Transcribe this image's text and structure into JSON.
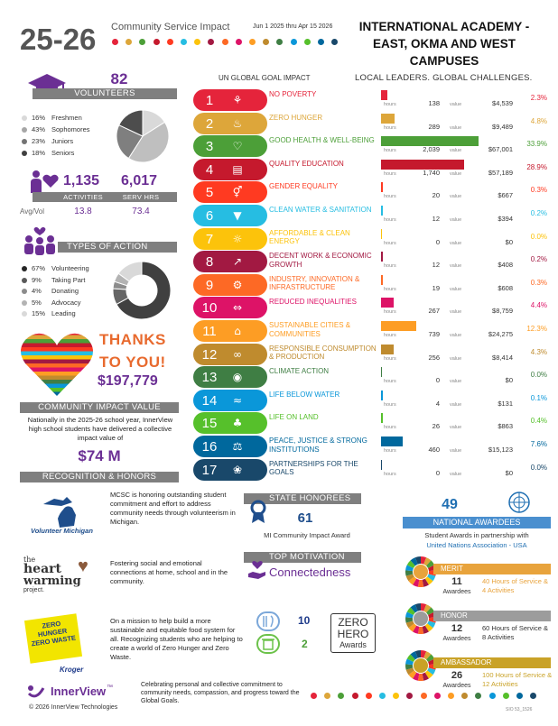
{
  "header": {
    "year": "25-26",
    "subtitle": "Community Service Impact",
    "date_range": "Jun 1 2025 thru Apr 15 2026",
    "school": "INTERNATIONAL ACADEMY - EAST, OKMA AND WEST CAMPUSES",
    "tagline": "LOCAL LEADERS.  GLOBAL CHALLENGES."
  },
  "header_dots": [
    "#e5243b",
    "#dda63a",
    "#4c9f38",
    "#c5192d",
    "#ff3a21",
    "#26bde2",
    "#fcc30b",
    "#a21942",
    "#fd6925",
    "#dd1367",
    "#fd9d24",
    "#bf8b2e",
    "#3f7e44",
    "#0a97d9",
    "#56c02b",
    "#00689d",
    "#19486a"
  ],
  "volunteers": {
    "count": "82",
    "label": "VOLUNTEERS",
    "legend": [
      {
        "pct": "16%",
        "label": "Freshmen",
        "color": "#d9d9d9"
      },
      {
        "pct": "43%",
        "label": "Sophomores",
        "color": "#a6a6a6"
      },
      {
        "pct": "23%",
        "label": "Juniors",
        "color": "#737373"
      },
      {
        "pct": "18%",
        "label": "Seniors",
        "color": "#404040"
      }
    ],
    "pie_values": [
      16,
      43,
      23,
      18
    ],
    "pie_colors": [
      "#d9d9d9",
      "#bfbfbf",
      "#7f7f7f",
      "#4d4d4d"
    ]
  },
  "activity": {
    "activities": "1,135",
    "serv_hrs": "6,017",
    "activities_label": "ACTIVITIES",
    "serv_hrs_label": "SERV HRS",
    "avg_label": "Avg/Vol",
    "avg_activities": "13.8",
    "avg_hours": "73.4"
  },
  "types": {
    "label": "TYPES OF ACTION",
    "legend": [
      {
        "pct": "67%",
        "label": "Volunteering",
        "color": "#262626"
      },
      {
        "pct": "9%",
        "label": "Taking Part",
        "color": "#595959"
      },
      {
        "pct": "4%",
        "label": "Donating",
        "color": "#8c8c8c"
      },
      {
        "pct": "5%",
        "label": "Advocacy",
        "color": "#b3b3b3"
      },
      {
        "pct": "15%",
        "label": "Leading",
        "color": "#d9d9d9"
      }
    ],
    "donut_values": [
      67,
      9,
      4,
      5,
      15
    ],
    "donut_colors": [
      "#404040",
      "#666666",
      "#8c8c8c",
      "#b3b3b3",
      "#d9d9d9"
    ]
  },
  "thanks": {
    "line1": "THANKS",
    "line2": "TO YOU!",
    "amount": "$197,779"
  },
  "impact": {
    "label": "COMMUNITY IMPACT VALUE",
    "text": "Nationally in the 2025-26 school year, InnerView high school students have delivered a collective impact value of",
    "amount": "$74 M"
  },
  "recognition": {
    "label": "RECOGNITION & HONORS",
    "volunteer_michigan": "Volunteer Michigan",
    "mcsc_text": "MCSC is honoring outstanding student commitment and effort to address community needs through volunteerism in Michigan.",
    "heartwarming_logo": "the heart warming project.",
    "heartwarming_text": "Fostering social and emotional connections at home, school and in the community.",
    "zero_logo": "ZERO HUNGER ZERO WASTE",
    "kroger": "Kroger",
    "zero_text": "On a mission to help build a more sustainable and equitable food system for all. Recognizing students who are helping to create a world of Zero Hunger and Zero Waste.",
    "zero_hunger_count": "10",
    "zero_waste_count": "2",
    "zero_hero": "ZERO",
    "zero_hero2": "HERO",
    "awards": "Awards"
  },
  "state": {
    "label": "STATE HONOREES",
    "count": "61",
    "caption": "MI Community Impact Award"
  },
  "motivation": {
    "label": "TOP MOTIVATION",
    "value": "Connectedness"
  },
  "national": {
    "count": "49",
    "label": "NATIONAL AWARDEES",
    "caption1": "Student Awards in partnership with",
    "caption2": "United Nations Association - USA",
    "tiers": [
      {
        "name": "MERIT",
        "count": "11",
        "awardees": "Awardees",
        "desc": "40 Hours of Service & 4 Activities",
        "color": "#e8a33c",
        "text_color": "#e8a33c"
      },
      {
        "name": "HONOR",
        "count": "12",
        "awardees": "Awardees",
        "desc": "60 Hours of Service & 8 Activities",
        "color": "#9c9c9c",
        "text_color": "#333333"
      },
      {
        "name": "AMBASSADOR",
        "count": "26",
        "awardees": "Awardees",
        "desc": "100 Hours of Service & 12 Activities",
        "color": "#c9a227",
        "text_color": "#c9a227"
      }
    ]
  },
  "sdg": {
    "header": "UN GLOBAL GOAL IMPACT",
    "hours_label": "hours",
    "value_label": "value",
    "rows": [
      {
        "num": "1",
        "icon": "⚘",
        "name": "NO POVERTY",
        "hours": "138",
        "value": "$4,539",
        "pct": "2.3%",
        "share": 2.3,
        "color": "#e5243b"
      },
      {
        "num": "2",
        "icon": "♨",
        "name": "ZERO HUNGER",
        "hours": "289",
        "value": "$9,489",
        "pct": "4.8%",
        "share": 4.8,
        "color": "#dda63a"
      },
      {
        "num": "3",
        "icon": "♡",
        "name": "GOOD HEALTH & WELL-BEING",
        "hours": "2,039",
        "value": "$67,001",
        "pct": "33.9%",
        "share": 33.9,
        "color": "#4c9f38"
      },
      {
        "num": "4",
        "icon": "▤",
        "name": "QUALITY EDUCATION",
        "hours": "1,740",
        "value": "$57,189",
        "pct": "28.9%",
        "share": 28.9,
        "color": "#c5192d"
      },
      {
        "num": "5",
        "icon": "⚥",
        "name": "GENDER EQUALITY",
        "hours": "20",
        "value": "$667",
        "pct": "0.3%",
        "share": 0.3,
        "color": "#ff3a21"
      },
      {
        "num": "6",
        "icon": "▼",
        "name": "CLEAN WATER & SANITATION",
        "hours": "12",
        "value": "$394",
        "pct": "0.2%",
        "share": 0.2,
        "color": "#26bde2"
      },
      {
        "num": "7",
        "icon": "☼",
        "name": "AFFORDABLE & CLEAN ENERGY",
        "hours": "0",
        "value": "$0",
        "pct": "0.0%",
        "share": 0,
        "color": "#fcc30b"
      },
      {
        "num": "8",
        "icon": "↗",
        "name": "DECENT WORK & ECONOMIC GROWTH",
        "hours": "12",
        "value": "$408",
        "pct": "0.2%",
        "share": 0.2,
        "color": "#a21942"
      },
      {
        "num": "9",
        "icon": "⚙",
        "name": "INDUSTRY, INNOVATION & INFRASTRUCTURE",
        "hours": "19",
        "value": "$608",
        "pct": "0.3%",
        "share": 0.3,
        "color": "#fd6925"
      },
      {
        "num": "10",
        "icon": "⇔",
        "name": "REDUCED INEQUALITIES",
        "hours": "267",
        "value": "$8,759",
        "pct": "4.4%",
        "share": 4.4,
        "color": "#dd1367"
      },
      {
        "num": "11",
        "icon": "⌂",
        "name": "SUSTAINABLE CITIES & COMMUNITIES",
        "hours": "739",
        "value": "$24,275",
        "pct": "12.3%",
        "share": 12.3,
        "color": "#fd9d24"
      },
      {
        "num": "12",
        "icon": "∞",
        "name": "RESPONSIBLE CONSUMPTION & PRODUCTION",
        "hours": "256",
        "value": "$8,414",
        "pct": "4.3%",
        "share": 4.3,
        "color": "#bf8b2e"
      },
      {
        "num": "13",
        "icon": "◉",
        "name": "CLIMATE ACTION",
        "hours": "0",
        "value": "$0",
        "pct": "0.0%",
        "share": 0,
        "color": "#3f7e44"
      },
      {
        "num": "14",
        "icon": "≈",
        "name": "LIFE BELOW WATER",
        "hours": "4",
        "value": "$131",
        "pct": "0.1%",
        "share": 0.1,
        "color": "#0a97d9"
      },
      {
        "num": "15",
        "icon": "♣",
        "name": "LIFE ON LAND",
        "hours": "26",
        "value": "$863",
        "pct": "0.4%",
        "share": 0.4,
        "color": "#56c02b"
      },
      {
        "num": "16",
        "icon": "⚖",
        "name": "PEACE, JUSTICE & STRONG INSTITUTIONS",
        "hours": "460",
        "value": "$15,123",
        "pct": "7.6%",
        "share": 7.6,
        "color": "#00689d"
      },
      {
        "num": "17",
        "icon": "❀",
        "name": "PARTNERSHIPS FOR THE GOALS",
        "hours": "0",
        "value": "$0",
        "pct": "0.0%",
        "share": 0,
        "color": "#19486a"
      }
    ]
  },
  "footer": {
    "brand": "InnerView",
    "tm": "™",
    "copyright": "© 2026 InnerView Technologies",
    "text": "Celebrating personal and collective commitment to community needs, compassion, and progress toward the Global Goals.",
    "code": "SIO 53_1526"
  }
}
